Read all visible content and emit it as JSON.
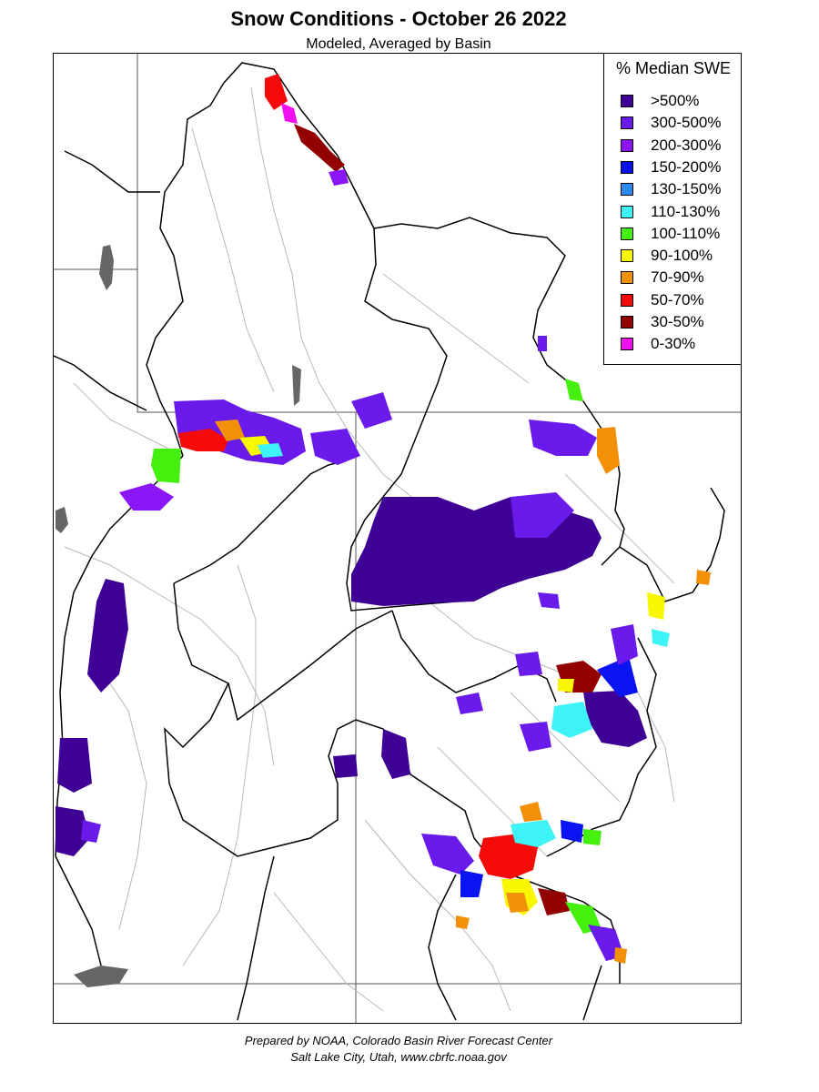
{
  "title": "Snow Conditions - October 26 2022",
  "subtitle": "Modeled, Averaged by Basin",
  "legend": {
    "title": "% Median SWE",
    "items": [
      {
        "label": ">500%",
        "color": "#3f0096"
      },
      {
        "label": "300-500%",
        "color": "#6a1aea"
      },
      {
        "label": "200-300%",
        "color": "#8b16f5"
      },
      {
        "label": "150-200%",
        "color": "#0a14f0"
      },
      {
        "label": "130-150%",
        "color": "#2e8cf0"
      },
      {
        "label": "110-130%",
        "color": "#3ef3f5"
      },
      {
        "label": "100-110%",
        "color": "#45f00e"
      },
      {
        "label": "90-100%",
        "color": "#f8f700"
      },
      {
        "label": "70-90%",
        "color": "#f29007"
      },
      {
        "label": "50-70%",
        "color": "#f50a0a"
      },
      {
        "label": "30-50%",
        "color": "#930000"
      },
      {
        "label": "0-30%",
        "color": "#f20ff2"
      }
    ]
  },
  "footer": {
    "line1": "Prepared by NOAA, Colorado Basin River Forecast Center",
    "line2": "Salt Lake City, Utah, www.cbrfc.noaa.gov"
  }
}
